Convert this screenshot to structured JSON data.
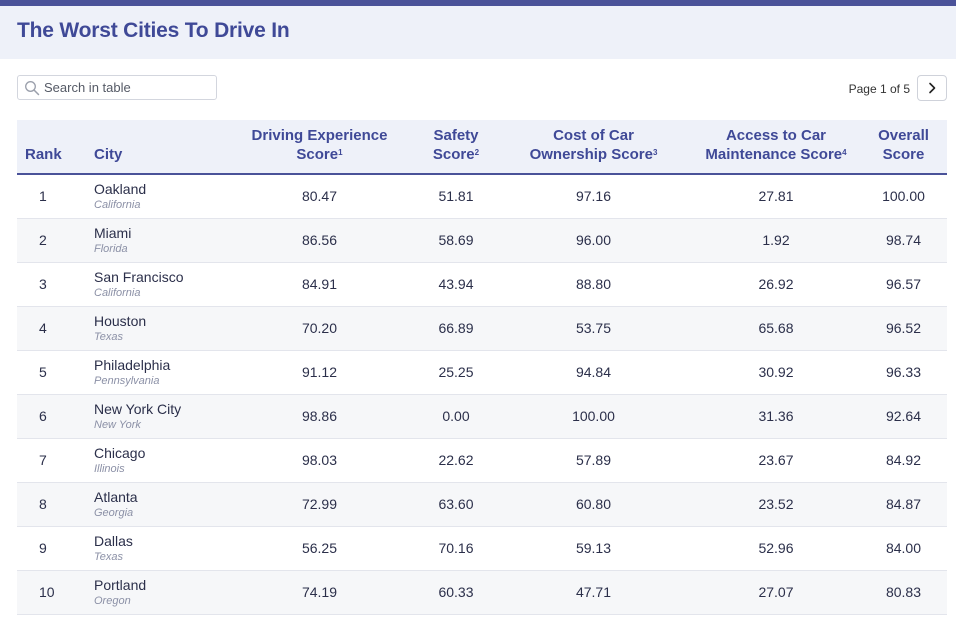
{
  "header": {
    "title": "The Worst Cities To Drive In"
  },
  "search": {
    "placeholder": "Search in table",
    "value": ""
  },
  "pagination": {
    "label": "Page 1 of 5",
    "next_icon": "chevron-right-icon"
  },
  "columns": {
    "rank": "Rank",
    "city": "City",
    "driving_line1": "Driving Experience",
    "driving_line2": "Score",
    "driving_sup": "1",
    "safety_line1": "Safety",
    "safety_line2": "Score",
    "safety_sup": "2",
    "cost_line1": "Cost of Car",
    "cost_line2": "Ownership Score",
    "cost_sup": "3",
    "access_line1": "Access to Car",
    "access_line2": "Maintenance Score",
    "access_sup": "4",
    "overall_line1": "Overall",
    "overall_line2": "Score"
  },
  "rows": [
    {
      "rank": "1",
      "city": "Oakland",
      "state": "California",
      "driving": "80.47",
      "safety": "51.81",
      "cost": "97.16",
      "access": "27.81",
      "overall": "100.00"
    },
    {
      "rank": "2",
      "city": "Miami",
      "state": "Florida",
      "driving": "86.56",
      "safety": "58.69",
      "cost": "96.00",
      "access": "1.92",
      "overall": "98.74"
    },
    {
      "rank": "3",
      "city": "San Francisco",
      "state": "California",
      "driving": "84.91",
      "safety": "43.94",
      "cost": "88.80",
      "access": "26.92",
      "overall": "96.57"
    },
    {
      "rank": "4",
      "city": "Houston",
      "state": "Texas",
      "driving": "70.20",
      "safety": "66.89",
      "cost": "53.75",
      "access": "65.68",
      "overall": "96.52"
    },
    {
      "rank": "5",
      "city": "Philadelphia",
      "state": "Pennsylvania",
      "driving": "91.12",
      "safety": "25.25",
      "cost": "94.84",
      "access": "30.92",
      "overall": "96.33"
    },
    {
      "rank": "6",
      "city": "New York City",
      "state": "New York",
      "driving": "98.86",
      "safety": "0.00",
      "cost": "100.00",
      "access": "31.36",
      "overall": "92.64"
    },
    {
      "rank": "7",
      "city": "Chicago",
      "state": "Illinois",
      "driving": "98.03",
      "safety": "22.62",
      "cost": "57.89",
      "access": "23.67",
      "overall": "84.92"
    },
    {
      "rank": "8",
      "city": "Atlanta",
      "state": "Georgia",
      "driving": "72.99",
      "safety": "63.60",
      "cost": "60.80",
      "access": "23.52",
      "overall": "84.87"
    },
    {
      "rank": "9",
      "city": "Dallas",
      "state": "Texas",
      "driving": "56.25",
      "safety": "70.16",
      "cost": "59.13",
      "access": "52.96",
      "overall": "84.00"
    },
    {
      "rank": "10",
      "city": "Portland",
      "state": "Oregon",
      "driving": "74.19",
      "safety": "60.33",
      "cost": "47.71",
      "access": "27.07",
      "overall": "80.83"
    }
  ]
}
